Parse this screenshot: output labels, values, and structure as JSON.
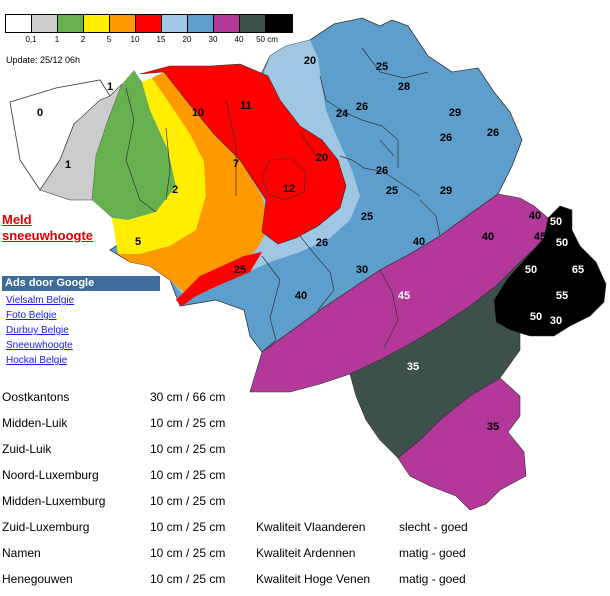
{
  "legend": {
    "unit": "cm",
    "colors": [
      "#ffffff",
      "#cccccc",
      "#66b050",
      "#ffee00",
      "#ff9900",
      "#ff0000",
      "#9fc6e2",
      "#5e9ecc",
      "#b4379a",
      "#3e504c",
      "#000000"
    ],
    "ticks": [
      "0,1",
      "1",
      "2",
      "5",
      "10",
      "15",
      "20",
      "30",
      "40",
      "50 cm"
    ]
  },
  "update": "Update: 25/12 06h",
  "meld_link": [
    "Meld",
    "sneeuwhoogte"
  ],
  "ads": {
    "header": "Ads door Google",
    "links": [
      "Vielsalm Belgie",
      "Foto Belgie",
      "Durbuy Belgie",
      "Sneeuwhoogte",
      "Hockai Belgie"
    ]
  },
  "map_labels": [
    "0",
    "1",
    "1",
    "2",
    "5",
    "10",
    "11",
    "7",
    "12",
    "20",
    "20",
    "25",
    "28",
    "24",
    "26",
    "29",
    "26",
    "26",
    "26",
    "25",
    "29",
    "25",
    "26",
    "25",
    "40",
    "40",
    "40",
    "45",
    "50",
    "50",
    "65",
    "50",
    "55",
    "50",
    "30",
    "30",
    "40",
    "45",
    "35",
    "35"
  ],
  "table": {
    "rows": [
      {
        "region": "Oostkantons",
        "value": "30 cm / 66 cm",
        "quality_label": "",
        "quality_value": ""
      },
      {
        "region": "Midden-Luik",
        "value": "10 cm / 25 cm",
        "quality_label": "",
        "quality_value": ""
      },
      {
        "region": "Zuid-Luik",
        "value": "10 cm / 25 cm",
        "quality_label": "",
        "quality_value": ""
      },
      {
        "region": "Noord-Luxemburg",
        "value": "10 cm / 25 cm",
        "quality_label": "",
        "quality_value": ""
      },
      {
        "region": "Midden-Luxemburg",
        "value": "10 cm / 25 cm",
        "quality_label": "",
        "quality_value": ""
      },
      {
        "region": "Zuid-Luxemburg",
        "value": "10 cm / 25 cm",
        "quality_label": "Kwaliteit Vlaanderen",
        "quality_value": "slecht - goed"
      },
      {
        "region": "Namen",
        "value": "10 cm / 25 cm",
        "quality_label": "Kwaliteit Ardennen",
        "quality_value": "matig - goed"
      },
      {
        "region": "Henegouwen",
        "value": "10 cm / 25 cm",
        "quality_label": "Kwaliteit Hoge Venen",
        "quality_value": "matig - goed"
      }
    ]
  }
}
